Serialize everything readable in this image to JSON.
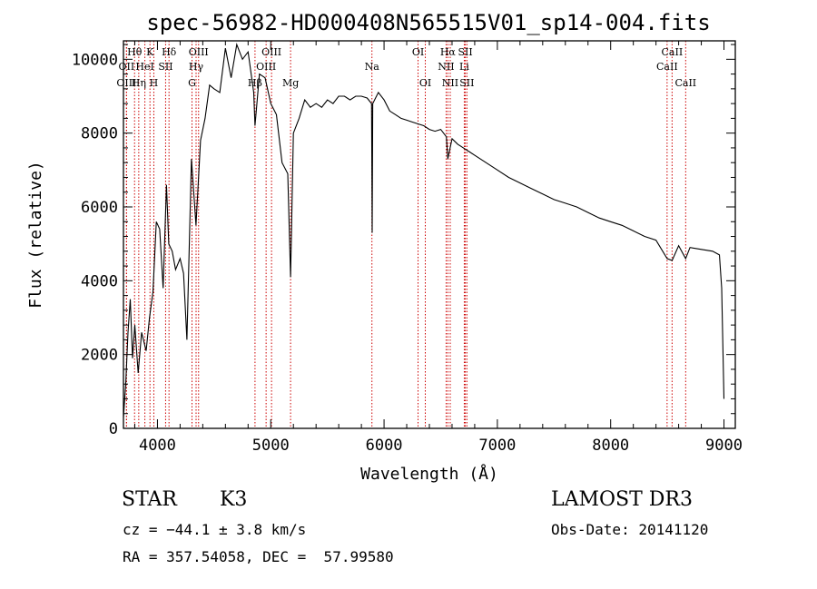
{
  "chart_data": {
    "type": "line",
    "title": "spec-56982-HD000408N565515V01_sp14-004.fits",
    "xlabel": "Wavelength (Å)",
    "ylabel": "Flux (relative)",
    "xlim": [
      3700,
      9100
    ],
    "ylim": [
      0,
      10500
    ],
    "xticks": [
      4000,
      5000,
      6000,
      7000,
      8000,
      9000
    ],
    "yticks": [
      0,
      2000,
      4000,
      6000,
      8000,
      10000
    ],
    "grid": false,
    "series": [
      {
        "x": [
          3700,
          3720,
          3740,
          3760,
          3780,
          3800,
          3830,
          3860,
          3900,
          3930,
          3960,
          3990,
          4020,
          4050,
          4080,
          4100,
          4130,
          4160,
          4200,
          4230,
          4260,
          4300,
          4340,
          4380,
          4420,
          4460,
          4500,
          4550,
          4600,
          4650,
          4700,
          4750,
          4800,
          4850,
          4861,
          4900,
          4950,
          5000,
          5050,
          5100,
          5150,
          5175,
          5200,
          5250,
          5300,
          5350,
          5400,
          5450,
          5500,
          5550,
          5600,
          5650,
          5700,
          5750,
          5800,
          5850,
          5890,
          5895,
          5900,
          5950,
          6000,
          6050,
          6100,
          6150,
          6200,
          6250,
          6300,
          6350,
          6400,
          6450,
          6500,
          6550,
          6563,
          6600,
          6650,
          6700,
          6750,
          6800,
          6900,
          7000,
          7100,
          7200,
          7300,
          7400,
          7500,
          7600,
          7700,
          7800,
          7900,
          8000,
          8100,
          8200,
          8300,
          8400,
          8498,
          8542,
          8600,
          8662,
          8700,
          8800,
          8900,
          8960,
          8980,
          9000
        ],
        "y": [
          300,
          1200,
          2600,
          3500,
          1900,
          2800,
          1500,
          2600,
          2100,
          3000,
          3700,
          5600,
          5400,
          3800,
          6600,
          5000,
          4800,
          4300,
          4600,
          4200,
          2400,
          7300,
          5500,
          7800,
          8400,
          9300,
          9200,
          9100,
          10300,
          9500,
          10400,
          10000,
          10200,
          9100,
          8200,
          9600,
          9500,
          8800,
          8500,
          7200,
          6900,
          4100,
          8000,
          8400,
          8900,
          8700,
          8800,
          8700,
          8900,
          8800,
          9000,
          9000,
          8900,
          9000,
          9000,
          8950,
          8800,
          5300,
          8800,
          9100,
          8900,
          8600,
          8500,
          8400,
          8350,
          8300,
          8250,
          8200,
          8100,
          8050,
          8100,
          7900,
          7300,
          7850,
          7700,
          7600,
          7500,
          7400,
          7200,
          7000,
          6800,
          6650,
          6500,
          6350,
          6200,
          6100,
          6000,
          5850,
          5700,
          5600,
          5500,
          5350,
          5200,
          5100,
          4600,
          4550,
          4950,
          4600,
          4900,
          4850,
          4800,
          4700,
          3800,
          800
        ]
      }
    ],
    "spectral_lines": [
      {
        "name": "Hθ",
        "wl": 3798,
        "row": 0
      },
      {
        "name": "K",
        "wl": 3934,
        "row": 0
      },
      {
        "name": "Hδ",
        "wl": 4102,
        "row": 0
      },
      {
        "name": "OIII",
        "wl": 4363,
        "row": 0
      },
      {
        "name": "OIII",
        "wl": 5007,
        "row": 0
      },
      {
        "name": "OI",
        "wl": 6300,
        "row": 0
      },
      {
        "name": "Hα",
        "wl": 6563,
        "row": 0
      },
      {
        "name": "SII",
        "wl": 6717,
        "row": 0
      },
      {
        "name": "CaII",
        "wl": 8542,
        "row": 0
      },
      {
        "name": "OII",
        "wl": 3727,
        "row": 1
      },
      {
        "name": "HeI",
        "wl": 3889,
        "row": 1
      },
      {
        "name": "SII",
        "wl": 4072,
        "row": 1
      },
      {
        "name": "Hγ",
        "wl": 4341,
        "row": 1
      },
      {
        "name": "OIII",
        "wl": 4959,
        "row": 1
      },
      {
        "name": "Na",
        "wl": 5893,
        "row": 1
      },
      {
        "name": "NII",
        "wl": 6548,
        "row": 1
      },
      {
        "name": "Li",
        "wl": 6708,
        "row": 1
      },
      {
        "name": "CaII",
        "wl": 8498,
        "row": 1
      },
      {
        "name": "OIII",
        "wl": 3727,
        "row": 2
      },
      {
        "name": "Hη",
        "wl": 3835,
        "row": 2
      },
      {
        "name": "H",
        "wl": 3968,
        "row": 2
      },
      {
        "name": "G",
        "wl": 4305,
        "row": 2
      },
      {
        "name": "Hβ",
        "wl": 4861,
        "row": 2
      },
      {
        "name": "Mg",
        "wl": 5175,
        "row": 2
      },
      {
        "name": "OI",
        "wl": 6364,
        "row": 2
      },
      {
        "name": "NII",
        "wl": 6584,
        "row": 2
      },
      {
        "name": "SII",
        "wl": 6731,
        "row": 2
      },
      {
        "name": "CaII",
        "wl": 8662,
        "row": 2
      }
    ]
  },
  "info": {
    "class_label": "STAR",
    "subclass_label": "K3",
    "cz": "cz = −44.1 ± 3.8 km/s",
    "coords": "RA = 357.54058, DEC =  57.99580",
    "survey": "LAMOST DR3",
    "obs_date": "Obs-Date: 20141120"
  }
}
